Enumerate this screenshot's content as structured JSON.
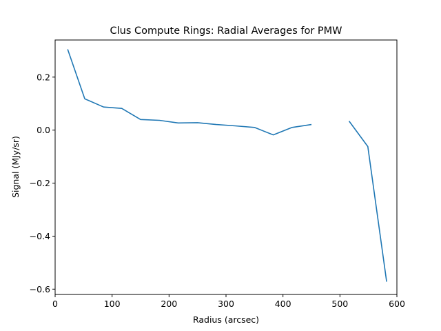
{
  "chart_data": {
    "type": "line",
    "title": "Clus Compute Rings: Radial Averages for PMW",
    "xlabel": "Radius (arcsec)",
    "ylabel": "Signal (MJy/sr)",
    "xlim": [
      0,
      600
    ],
    "ylim": [
      -0.62,
      0.34
    ],
    "xticks": [
      0,
      100,
      200,
      300,
      400,
      500,
      600
    ],
    "xtick_labels": [
      "0",
      "100",
      "200",
      "300",
      "400",
      "500",
      "600"
    ],
    "yticks": [
      -0.6,
      -0.4,
      -0.2,
      0.0,
      0.2
    ],
    "ytick_labels": [
      "−0.6",
      "−0.4",
      "−0.2",
      "0.0",
      "0.2"
    ],
    "grid": false,
    "color": "#1f77b4",
    "series": [
      {
        "segments": [
          [
            [
              22,
              0.305
            ],
            [
              52,
              0.118
            ],
            [
              85,
              0.087
            ],
            [
              117,
              0.082
            ],
            [
              150,
              0.04
            ],
            [
              183,
              0.037
            ],
            [
              216,
              0.027
            ],
            [
              250,
              0.028
            ],
            [
              283,
              0.021
            ],
            [
              316,
              0.016
            ],
            [
              350,
              0.01
            ],
            [
              383,
              -0.018
            ],
            [
              416,
              0.01
            ],
            [
              450,
              0.021
            ]
          ],
          [
            [
              516,
              0.034
            ],
            [
              549,
              -0.062
            ],
            [
              582,
              -0.572
            ]
          ]
        ]
      }
    ]
  }
}
